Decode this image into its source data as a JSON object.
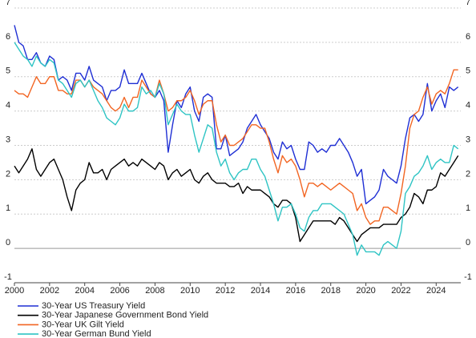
{
  "chart_data": {
    "type": "line",
    "x": [
      2000,
      2000.25,
      2000.5,
      2000.75,
      2001,
      2001.25,
      2001.5,
      2001.75,
      2002,
      2002.25,
      2002.5,
      2002.75,
      2003,
      2003.25,
      2003.5,
      2003.75,
      2004,
      2004.25,
      2004.5,
      2004.75,
      2005,
      2005.25,
      2005.5,
      2005.75,
      2006,
      2006.25,
      2006.5,
      2006.75,
      2007,
      2007.25,
      2007.5,
      2007.75,
      2008,
      2008.25,
      2008.5,
      2008.75,
      2009,
      2009.25,
      2009.5,
      2009.75,
      2010,
      2010.25,
      2010.5,
      2010.75,
      2011,
      2011.25,
      2011.5,
      2011.75,
      2012,
      2012.25,
      2012.5,
      2012.75,
      2013,
      2013.25,
      2013.5,
      2013.75,
      2014,
      2014.25,
      2014.5,
      2014.75,
      2015,
      2015.25,
      2015.5,
      2015.75,
      2016,
      2016.25,
      2016.5,
      2016.75,
      2017,
      2017.25,
      2017.5,
      2017.75,
      2018,
      2018.25,
      2018.5,
      2018.75,
      2019,
      2019.25,
      2019.5,
      2019.75,
      2020,
      2020.25,
      2020.5,
      2020.75,
      2021,
      2021.25,
      2021.5,
      2021.75,
      2022,
      2022.25,
      2022.5,
      2022.75,
      2023,
      2023.25,
      2023.5,
      2023.75,
      2024,
      2024.25,
      2024.5,
      2024.75,
      2025,
      2025.25
    ],
    "series": [
      {
        "name": "30-Year US Treasury Yield",
        "color": "#1f2fd4",
        "values": [
          6.5,
          6.0,
          5.9,
          5.5,
          5.5,
          5.7,
          5.4,
          5.3,
          5.6,
          5.5,
          4.9,
          5.0,
          4.9,
          4.6,
          5.1,
          5.1,
          4.9,
          5.3,
          4.9,
          4.8,
          4.7,
          4.3,
          4.6,
          4.6,
          4.7,
          5.2,
          4.8,
          4.8,
          4.8,
          5.1,
          4.8,
          4.5,
          4.4,
          4.6,
          4.3,
          2.8,
          3.6,
          4.3,
          4.1,
          4.5,
          4.7,
          4.0,
          3.7,
          4.4,
          4.5,
          4.4,
          2.9,
          2.9,
          3.3,
          2.7,
          2.8,
          2.9,
          3.1,
          3.5,
          3.7,
          3.9,
          3.6,
          3.4,
          3.2,
          2.8,
          2.6,
          3.1,
          2.9,
          3.0,
          2.6,
          2.3,
          2.3,
          3.1,
          3.0,
          2.8,
          2.9,
          2.8,
          3.0,
          3.0,
          3.2,
          3.0,
          2.8,
          2.5,
          2.1,
          2.3,
          1.3,
          1.4,
          1.5,
          1.7,
          2.3,
          2.1,
          2.0,
          1.9,
          2.4,
          3.2,
          3.8,
          3.9,
          3.7,
          3.9,
          4.8,
          4.0,
          4.3,
          4.5,
          4.1,
          4.7,
          4.6,
          4.7
        ]
      },
      {
        "name": "30-Year Japanese Government Bond Yield",
        "color": "#000000",
        "values": [
          2.4,
          2.2,
          2.4,
          2.6,
          2.9,
          2.3,
          2.1,
          2.3,
          2.5,
          2.6,
          2.3,
          2.0,
          1.5,
          1.1,
          1.7,
          1.9,
          2.0,
          2.5,
          2.2,
          2.2,
          2.3,
          2.0,
          2.3,
          2.4,
          2.5,
          2.6,
          2.4,
          2.5,
          2.4,
          2.6,
          2.5,
          2.4,
          2.3,
          2.5,
          2.4,
          2.0,
          2.2,
          2.3,
          2.1,
          2.2,
          2.3,
          2.0,
          1.9,
          2.1,
          2.2,
          2.0,
          1.9,
          1.9,
          1.9,
          1.8,
          1.8,
          1.9,
          1.6,
          1.8,
          1.7,
          1.7,
          1.7,
          1.6,
          1.5,
          1.3,
          1.2,
          1.4,
          1.4,
          1.3,
          0.9,
          0.2,
          0.4,
          0.6,
          0.8,
          0.8,
          0.8,
          0.8,
          0.8,
          0.7,
          0.9,
          0.8,
          0.6,
          0.4,
          0.2,
          0.4,
          0.5,
          0.6,
          0.6,
          0.6,
          0.7,
          0.7,
          0.7,
          0.7,
          0.9,
          1.0,
          1.2,
          1.6,
          1.5,
          1.3,
          1.7,
          1.7,
          1.8,
          2.2,
          2.1,
          2.3,
          2.5,
          2.7
        ]
      },
      {
        "name": "30-Year UK Gilt Yield",
        "color": "#f26522",
        "values": [
          4.6,
          4.5,
          4.5,
          4.4,
          4.7,
          5.0,
          4.8,
          4.8,
          5.0,
          5.0,
          4.6,
          4.6,
          4.5,
          4.5,
          4.9,
          4.9,
          4.7,
          4.9,
          4.7,
          4.6,
          4.5,
          4.3,
          4.1,
          4.0,
          4.1,
          4.4,
          4.1,
          4.4,
          4.4,
          4.9,
          4.7,
          4.5,
          4.4,
          4.9,
          4.5,
          4.0,
          4.1,
          4.3,
          4.3,
          4.4,
          4.6,
          4.3,
          3.9,
          4.2,
          4.3,
          4.3,
          3.6,
          3.1,
          3.3,
          3.0,
          3.0,
          3.1,
          3.2,
          3.4,
          3.6,
          3.6,
          3.5,
          3.5,
          3.1,
          2.6,
          2.2,
          2.7,
          2.5,
          2.6,
          2.4,
          2.0,
          1.5,
          1.9,
          1.9,
          1.8,
          1.9,
          1.8,
          1.7,
          1.8,
          1.9,
          1.8,
          1.7,
          1.6,
          1.1,
          1.3,
          0.9,
          0.7,
          0.8,
          0.8,
          1.2,
          1.2,
          1.1,
          1.0,
          1.6,
          2.4,
          3.5,
          3.9,
          4.0,
          4.4,
          4.7,
          4.2,
          4.5,
          4.6,
          4.5,
          4.8,
          5.2,
          5.2
        ]
      },
      {
        "name": "30-Year German Bund Yield",
        "color": "#2ec4c4",
        "values": [
          6.0,
          5.8,
          5.6,
          5.5,
          5.3,
          5.6,
          5.4,
          5.3,
          5.5,
          5.4,
          4.9,
          4.8,
          4.6,
          4.4,
          4.8,
          4.9,
          4.7,
          4.9,
          4.6,
          4.3,
          4.1,
          3.8,
          3.7,
          3.6,
          3.8,
          4.2,
          4.0,
          4.0,
          4.1,
          4.7,
          4.5,
          4.6,
          4.4,
          4.8,
          4.5,
          3.6,
          3.9,
          4.2,
          4.0,
          3.9,
          3.9,
          3.3,
          2.8,
          3.2,
          3.6,
          3.5,
          2.8,
          2.4,
          2.6,
          2.2,
          2.0,
          2.2,
          2.3,
          2.3,
          2.6,
          2.6,
          2.3,
          2.1,
          1.7,
          1.3,
          0.8,
          1.2,
          1.2,
          1.3,
          1.0,
          0.6,
          0.5,
          0.9,
          1.1,
          1.1,
          1.3,
          1.3,
          1.3,
          1.2,
          1.1,
          1.0,
          0.7,
          0.4,
          -0.2,
          0.1,
          -0.1,
          -0.1,
          -0.1,
          -0.2,
          0.1,
          0.2,
          0.1,
          0.0,
          0.5,
          1.6,
          1.8,
          2.1,
          2.2,
          2.4,
          2.7,
          2.3,
          2.5,
          2.6,
          2.5,
          2.5,
          3.0,
          2.9
        ]
      }
    ],
    "xlim": [
      2000,
      2025.4
    ],
    "xticks": [
      2000,
      2002,
      2004,
      2006,
      2008,
      2010,
      2012,
      2014,
      2016,
      2018,
      2020,
      2022,
      2024
    ],
    "ylim": [
      -1,
      7
    ],
    "yticks": [
      -1,
      0,
      1,
      2,
      3,
      4,
      5,
      6,
      7
    ],
    "grid": true
  }
}
